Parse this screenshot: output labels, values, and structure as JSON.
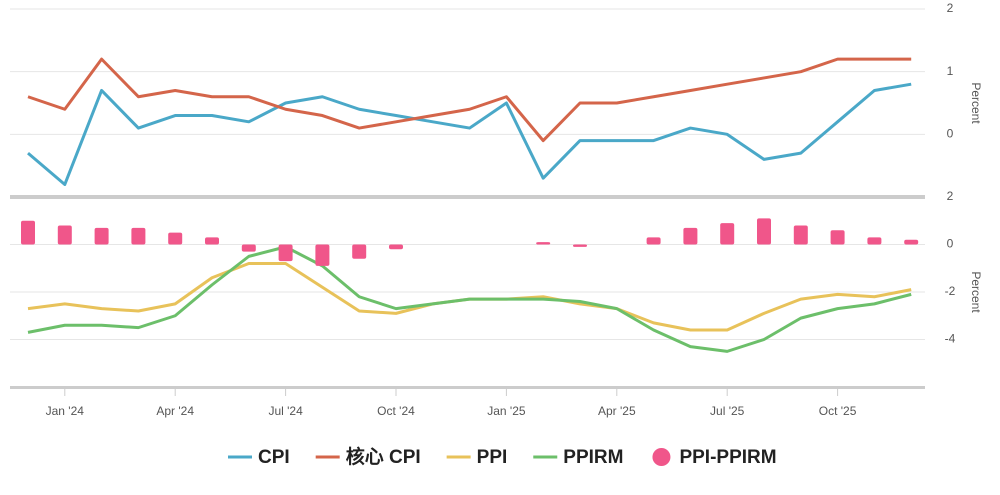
{
  "chart_data": [
    {
      "type": "line",
      "y_label": "Percent",
      "ylim": [
        -1,
        2
      ],
      "yticks": [
        0,
        1,
        2
      ],
      "grid": true,
      "categories": [
        null,
        "Jan '24",
        null,
        null,
        "Apr '24",
        null,
        null,
        "Jul '24",
        null,
        null,
        "Oct '24",
        null,
        null,
        "Jan '25",
        null,
        null,
        "Apr '25",
        null,
        null,
        "Jul '25",
        null,
        null,
        "Oct '25",
        null,
        null
      ],
      "series": [
        {
          "name": "CPI",
          "type": "line",
          "color": "#4aa8c8",
          "values": [
            -0.3,
            -0.8,
            0.7,
            0.1,
            0.3,
            0.3,
            0.2,
            0.5,
            0.6,
            0.4,
            0.3,
            0.2,
            0.1,
            0.5,
            -0.7,
            -0.1,
            -0.1,
            -0.1,
            0.1,
            0.0,
            -0.4,
            -0.3,
            0.2,
            0.7,
            0.8
          ]
        },
        {
          "name": "核心 CPI",
          "type": "line",
          "color": "#d4654a",
          "values": [
            0.6,
            0.4,
            1.2,
            0.6,
            0.7,
            0.6,
            0.6,
            0.4,
            0.3,
            0.1,
            0.2,
            0.3,
            0.4,
            0.6,
            -0.1,
            0.5,
            0.5,
            0.6,
            0.7,
            0.8,
            0.9,
            1.0,
            1.2,
            1.2,
            1.2
          ]
        }
      ]
    },
    {
      "type": "line",
      "y_label": "Percent",
      "ylim": [
        -6,
        2
      ],
      "yticks": [
        -4,
        -2,
        0,
        2
      ],
      "grid": true,
      "series": [
        {
          "name": "PPI",
          "type": "line",
          "color": "#e8c25a",
          "values": [
            -2.7,
            -2.5,
            -2.7,
            -2.8,
            -2.5,
            -1.4,
            -0.8,
            -0.8,
            -1.8,
            -2.8,
            -2.9,
            -2.5,
            -2.3,
            -2.3,
            -2.2,
            -2.5,
            -2.7,
            -3.3,
            -3.6,
            -3.6,
            -2.9,
            -2.3,
            -2.1,
            -2.2,
            -1.9
          ]
        },
        {
          "name": "PPIRM",
          "type": "line",
          "color": "#6cbf6a",
          "values": [
            -3.7,
            -3.4,
            -3.4,
            -3.5,
            -3.0,
            -1.7,
            -0.5,
            -0.1,
            -0.9,
            -2.2,
            -2.7,
            -2.5,
            -2.3,
            -2.3,
            -2.3,
            -2.4,
            -2.7,
            -3.6,
            -4.3,
            -4.5,
            -4.0,
            -3.1,
            -2.7,
            -2.5,
            -2.1
          ]
        },
        {
          "name": "PPI-PPIRM",
          "type": "bar",
          "color": "#f0568a",
          "values": [
            1.0,
            0.8,
            0.7,
            0.7,
            0.5,
            0.3,
            -0.3,
            -0.7,
            -0.9,
            -0.6,
            -0.2,
            0.0,
            0.0,
            0.0,
            0.1,
            -0.1,
            0.0,
            0.3,
            0.7,
            0.9,
            1.1,
            0.8,
            0.6,
            0.3,
            0.2
          ]
        }
      ]
    }
  ]
}
